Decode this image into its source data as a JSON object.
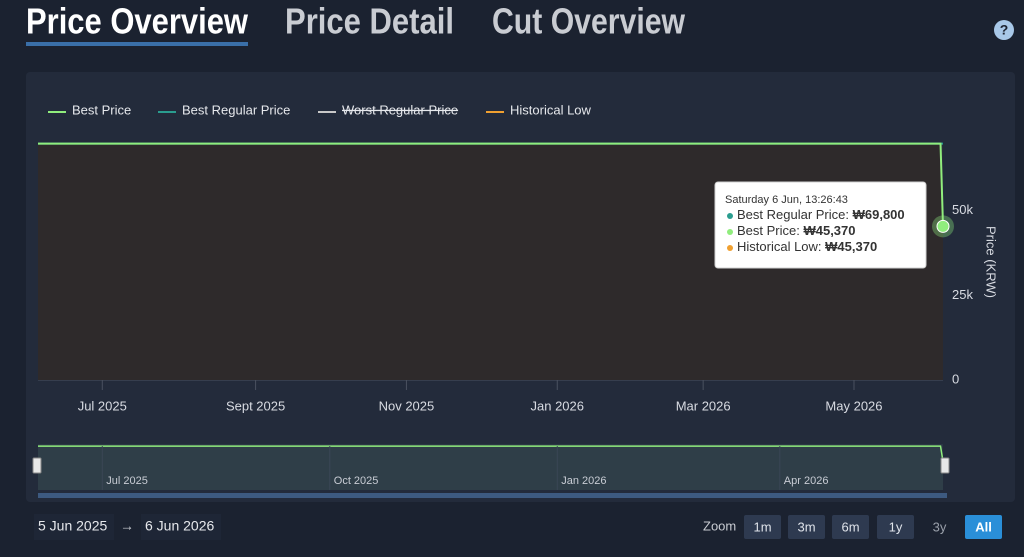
{
  "tabs": [
    "Price Overview",
    "Price Detail",
    "Cut Overview"
  ],
  "help": "?",
  "chart_data": {
    "type": "line",
    "y_axis_title": "Price (KRW)",
    "legend": "top-left",
    "x": [
      "2025-06-05",
      "2026-06-05",
      "2026-06-06"
    ],
    "xlim": [
      "2025-06-05",
      "2026-06-06"
    ],
    "xticks": [
      {
        "value": "2025-07-01",
        "label": "Jul 2025"
      },
      {
        "value": "2025-09-01",
        "label": "Sept 2025"
      },
      {
        "value": "2025-11-01",
        "label": "Nov 2025"
      },
      {
        "value": "2026-01-01",
        "label": "Jan 2026"
      },
      {
        "value": "2026-03-01",
        "label": "Mar 2026"
      },
      {
        "value": "2026-05-01",
        "label": "May 2026"
      }
    ],
    "ylim": [
      0,
      70000
    ],
    "yticks": [
      0,
      {
        "value": 25000,
        "label": "25k"
      },
      {
        "value": 50000,
        "label": "50k"
      }
    ],
    "area_color": "#2e2a2b",
    "series": [
      {
        "name": "Best Price",
        "color": "#90ed7d",
        "visible": true,
        "values": [
          69800,
          69800,
          45370
        ]
      },
      {
        "name": "Best Regular Price",
        "color": "#2a9d8f",
        "visible": true,
        "values": [
          69800,
          69800,
          69800
        ]
      },
      {
        "name": "Worst Regular Price",
        "color": "#c8c8c8",
        "visible": false,
        "values": [
          null,
          null,
          null
        ]
      },
      {
        "name": "Historical Low",
        "color": "#f0a030",
        "visible": true,
        "values": [
          null,
          null,
          45370
        ]
      }
    ],
    "navigator": {
      "xticks": [
        {
          "value": "2025-07-01",
          "label": "Jul 2025"
        },
        {
          "value": "2025-10-01",
          "label": "Oct 2025"
        },
        {
          "value": "2026-01-01",
          "label": "Jan 2026"
        },
        {
          "value": "2026-04-01",
          "label": "Apr 2026"
        }
      ]
    }
  },
  "tooltip": {
    "title": "Saturday 6 Jun, 13:26:43",
    "rows": [
      {
        "series": 1,
        "label": "Best Regular Price: ",
        "value": "₩69,800"
      },
      {
        "series": 0,
        "label": "Best Price: ",
        "value": "₩45,370"
      },
      {
        "series": 3,
        "label": "Historical Low: ",
        "value": "₩45,370"
      }
    ]
  },
  "range_selector": {
    "from": "5 Jun 2025",
    "arrow": "→",
    "to": "6 Jun 2026",
    "zoom_label": "Zoom",
    "buttons": [
      "1m",
      "3m",
      "6m",
      "1y",
      "3y",
      "All"
    ],
    "disabled": [
      4
    ],
    "selected": 5
  }
}
